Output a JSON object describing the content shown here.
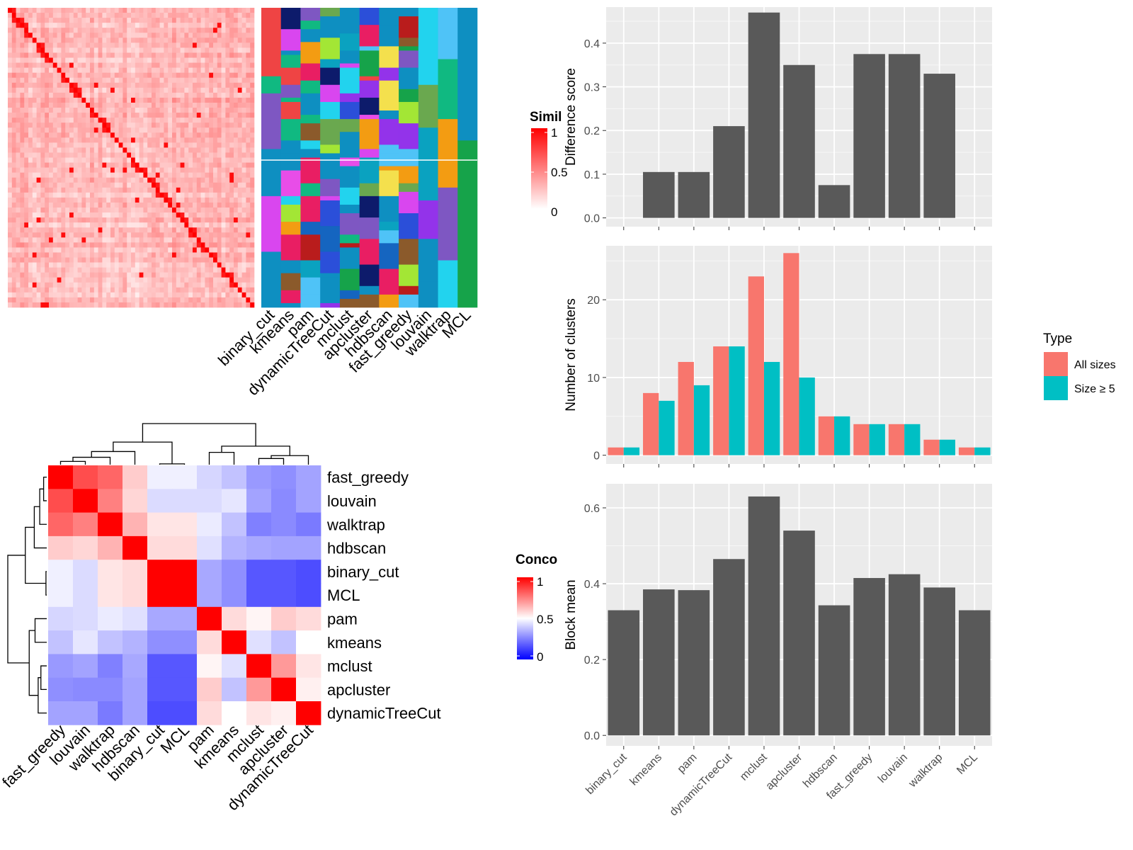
{
  "methods": [
    "binary_cut",
    "kmeans",
    "pam",
    "dynamicTreeCut",
    "mclust",
    "apcluster",
    "hdbscan",
    "fast_greedy",
    "louvain",
    "walktrap",
    "MCL"
  ],
  "similarity_legend": {
    "title": "Similarity",
    "ticks": [
      "1",
      "0.5",
      "0"
    ]
  },
  "concordance_legend": {
    "title": "Concordance",
    "ticks": [
      "1",
      "0.5",
      "0"
    ]
  },
  "concordance_order": [
    "fast_greedy",
    "louvain",
    "walktrap",
    "hdbscan",
    "binary_cut",
    "MCL",
    "pam",
    "kmeans",
    "mclust",
    "apcluster",
    "dynamicTreeCut"
  ],
  "chart_data": [
    {
      "type": "heatmap",
      "name": "concordance",
      "rows": [
        "fast_greedy",
        "louvain",
        "walktrap",
        "hdbscan",
        "binary_cut",
        "MCL",
        "pam",
        "kmeans",
        "mclust",
        "apcluster",
        "dynamicTreeCut"
      ],
      "cols": [
        "fast_greedy",
        "louvain",
        "walktrap",
        "hdbscan",
        "binary_cut",
        "MCL",
        "pam",
        "kmeans",
        "mclust",
        "apcluster",
        "dynamicTreeCut"
      ],
      "values": [
        [
          1.0,
          0.85,
          0.8,
          0.6,
          0.47,
          0.47,
          0.42,
          0.38,
          0.3,
          0.28,
          0.32
        ],
        [
          0.85,
          1.0,
          0.75,
          0.58,
          0.43,
          0.43,
          0.43,
          0.45,
          0.32,
          0.27,
          0.32
        ],
        [
          0.8,
          0.75,
          1.0,
          0.65,
          0.55,
          0.55,
          0.46,
          0.38,
          0.25,
          0.27,
          0.24
        ],
        [
          0.6,
          0.58,
          0.65,
          1.0,
          0.57,
          0.57,
          0.44,
          0.35,
          0.33,
          0.32,
          0.32
        ],
        [
          0.47,
          0.43,
          0.55,
          0.57,
          1.0,
          1.0,
          0.33,
          0.28,
          0.17,
          0.17,
          0.15
        ],
        [
          0.47,
          0.43,
          0.55,
          0.57,
          1.0,
          1.0,
          0.33,
          0.28,
          0.17,
          0.17,
          0.15
        ],
        [
          0.42,
          0.43,
          0.46,
          0.44,
          0.33,
          0.33,
          1.0,
          0.57,
          0.52,
          0.6,
          0.57
        ],
        [
          0.38,
          0.45,
          0.38,
          0.35,
          0.28,
          0.28,
          0.57,
          1.0,
          0.44,
          0.38,
          0.5
        ],
        [
          0.3,
          0.32,
          0.25,
          0.33,
          0.17,
          0.17,
          0.52,
          0.44,
          1.0,
          0.7,
          0.55
        ],
        [
          0.28,
          0.27,
          0.27,
          0.32,
          0.17,
          0.17,
          0.6,
          0.38,
          0.7,
          1.0,
          0.53
        ],
        [
          0.32,
          0.32,
          0.24,
          0.32,
          0.15,
          0.15,
          0.57,
          0.5,
          0.55,
          0.53,
          1.0
        ]
      ],
      "color_scale": {
        "low": "#0000FF",
        "mid": "#FFFFFF",
        "high": "#FF0000",
        "range": [
          0,
          1
        ]
      }
    },
    {
      "type": "bar",
      "name": "difference_score",
      "categories": [
        "binary_cut",
        "kmeans",
        "pam",
        "dynamicTreeCut",
        "mclust",
        "apcluster",
        "hdbscan",
        "fast_greedy",
        "louvain",
        "walktrap",
        "MCL"
      ],
      "values": [
        0,
        0.105,
        0.105,
        0.21,
        0.47,
        0.35,
        0.075,
        0.375,
        0.375,
        0.33,
        0
      ],
      "ylabel": "Difference score",
      "ylim": [
        0,
        0.48
      ],
      "yticks": [
        0.0,
        0.1,
        0.2,
        0.3,
        0.4
      ],
      "ytick_labels": [
        "0.0",
        "0.1",
        "0.2",
        "0.3",
        "0.4"
      ],
      "bar_color": "#595959"
    },
    {
      "type": "bar",
      "name": "number_of_clusters",
      "categories": [
        "binary_cut",
        "kmeans",
        "pam",
        "dynamicTreeCut",
        "mclust",
        "apcluster",
        "hdbscan",
        "fast_greedy",
        "louvain",
        "walktrap",
        "MCL"
      ],
      "series": [
        {
          "name": "All sizes",
          "color": "#F8766D",
          "values": [
            1,
            8,
            12,
            14,
            23,
            26,
            5,
            4,
            4,
            2,
            1
          ]
        },
        {
          "name": "Size ≥ 5",
          "color": "#00BFC4",
          "values": [
            1,
            7,
            9,
            14,
            12,
            10,
            5,
            4,
            4,
            2,
            1
          ]
        }
      ],
      "ylabel": "Number of clusters",
      "ylim": [
        0,
        26.8
      ],
      "yticks": [
        0,
        10,
        20
      ],
      "ytick_labels": [
        "0",
        "10",
        "20"
      ],
      "legend": {
        "title": "Type",
        "position": "right"
      }
    },
    {
      "type": "bar",
      "name": "block_mean",
      "categories": [
        "binary_cut",
        "kmeans",
        "pam",
        "dynamicTreeCut",
        "mclust",
        "apcluster",
        "hdbscan",
        "fast_greedy",
        "louvain",
        "walktrap",
        "MCL"
      ],
      "values": [
        0.33,
        0.385,
        0.383,
        0.465,
        0.63,
        0.54,
        0.343,
        0.415,
        0.425,
        0.39,
        0.33
      ],
      "ylabel": "Block mean",
      "ylim": [
        0,
        0.66
      ],
      "yticks": [
        0.0,
        0.2,
        0.4,
        0.6
      ],
      "ytick_labels": [
        "0.0",
        "0.2",
        "0.4",
        "0.6"
      ],
      "bar_color": "#595959"
    }
  ],
  "membership_palette": [
    "#2B4FD9",
    "#4FC3F7",
    "#E84DE8",
    "#6AA84F",
    "#7E57C2",
    "#F4E04D",
    "#16A34A",
    "#EF4444",
    "#0D1B6B",
    "#F39C12",
    "#E91E63",
    "#22D3EE",
    "#8B5A2B",
    "#10B981",
    "#A3E635",
    "#9333EA",
    "#D946EF",
    "#1565C0",
    "#B91C1C",
    "#0AA2C0"
  ],
  "background_color": "#0E8FC1"
}
